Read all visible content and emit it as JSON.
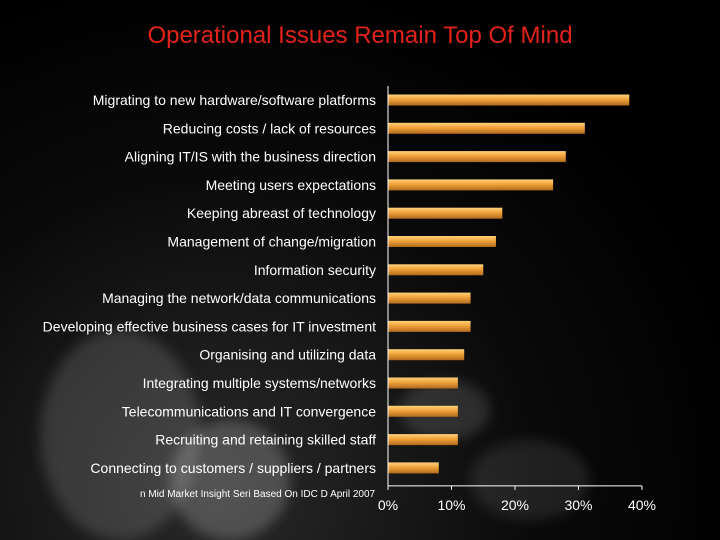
{
  "slide": {
    "title": "Operational Issues Remain Top Of Mind",
    "source_note": "n Mid Market Insight Seri    Based On IDC D     April 2007"
  },
  "colors": {
    "bar": "#f0a23a",
    "bar_highlight": "#ffd27a",
    "title": "#e3221c",
    "text": "#ffffff",
    "axis": "#ffffff"
  },
  "chart_data": {
    "type": "bar",
    "orientation": "horizontal",
    "title": "Operational Issues Remain Top Of Mind",
    "xlim": [
      0,
      40
    ],
    "x_ticks": [
      "0%",
      "10%",
      "20%",
      "30%",
      "40%"
    ],
    "x_tick_values": [
      0,
      10,
      20,
      30,
      40
    ],
    "grid": false,
    "categories": [
      "Migrating to new hardware/software platforms",
      "Reducing costs / lack of resources",
      "Aligning IT/IS with the business direction",
      "Meeting users  expectations",
      "Keeping abreast of technology",
      "Management of change/migration",
      "Information security",
      "Managing the network/data communications",
      "Developing effective business cases for IT investment",
      "Organising and utilizing data",
      "Integrating multiple systems/networks",
      "Telecommunications and IT convergence",
      "Recruiting and retaining skilled staff",
      "Connecting to customers / suppliers / partners"
    ],
    "values": [
      38,
      31,
      28,
      26,
      18,
      17,
      15,
      13,
      13,
      12,
      11,
      11,
      11,
      8
    ]
  }
}
